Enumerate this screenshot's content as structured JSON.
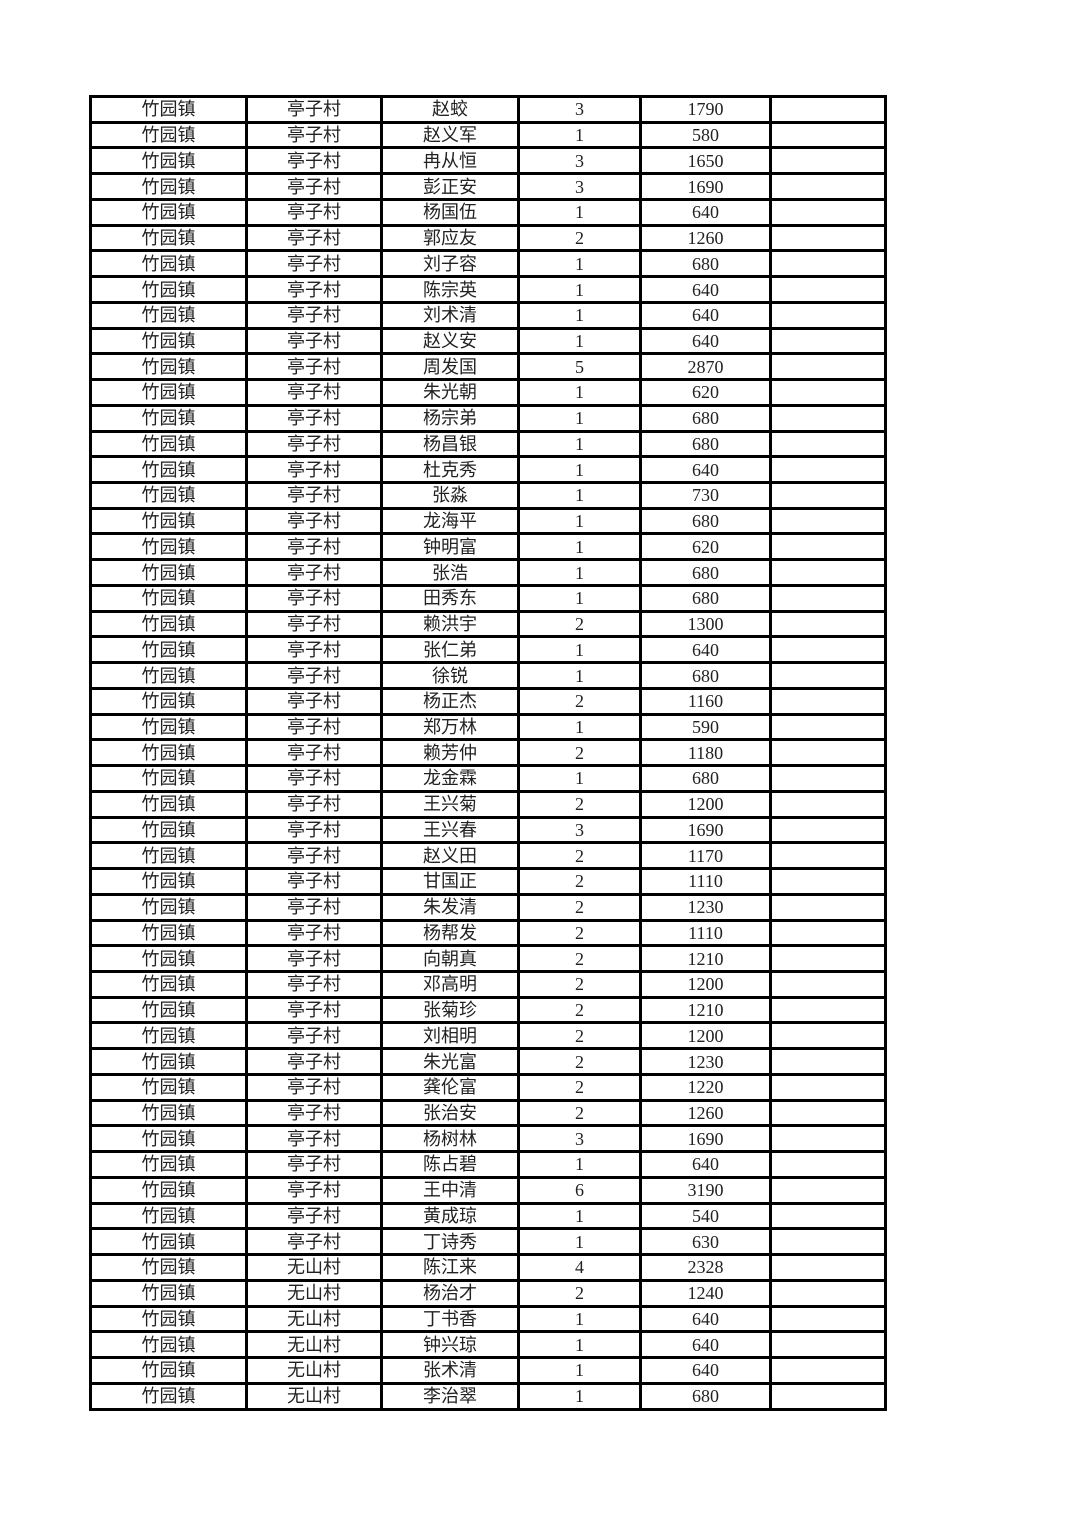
{
  "page": {
    "background_color": "#ffffff",
    "border_color": "#000000",
    "text_color": "#222222"
  },
  "table": {
    "column_keys": [
      "town",
      "village",
      "name",
      "count",
      "amount",
      "blank"
    ],
    "rows": [
      [
        "竹园镇",
        "亭子村",
        "赵蛟",
        "3",
        "1790",
        ""
      ],
      [
        "竹园镇",
        "亭子村",
        "赵义军",
        "1",
        "580",
        ""
      ],
      [
        "竹园镇",
        "亭子村",
        "冉从恒",
        "3",
        "1650",
        ""
      ],
      [
        "竹园镇",
        "亭子村",
        "彭正安",
        "3",
        "1690",
        ""
      ],
      [
        "竹园镇",
        "亭子村",
        "杨国伍",
        "1",
        "640",
        ""
      ],
      [
        "竹园镇",
        "亭子村",
        "郭应友",
        "2",
        "1260",
        ""
      ],
      [
        "竹园镇",
        "亭子村",
        "刘子容",
        "1",
        "680",
        ""
      ],
      [
        "竹园镇",
        "亭子村",
        "陈宗英",
        "1",
        "640",
        ""
      ],
      [
        "竹园镇",
        "亭子村",
        "刘术清",
        "1",
        "640",
        ""
      ],
      [
        "竹园镇",
        "亭子村",
        "赵义安",
        "1",
        "640",
        ""
      ],
      [
        "竹园镇",
        "亭子村",
        "周发国",
        "5",
        "2870",
        ""
      ],
      [
        "竹园镇",
        "亭子村",
        "朱光朝",
        "1",
        "620",
        ""
      ],
      [
        "竹园镇",
        "亭子村",
        "杨宗弟",
        "1",
        "680",
        ""
      ],
      [
        "竹园镇",
        "亭子村",
        "杨昌银",
        "1",
        "680",
        ""
      ],
      [
        "竹园镇",
        "亭子村",
        "杜克秀",
        "1",
        "640",
        ""
      ],
      [
        "竹园镇",
        "亭子村",
        "张淼",
        "1",
        "730",
        ""
      ],
      [
        "竹园镇",
        "亭子村",
        "龙海平",
        "1",
        "680",
        ""
      ],
      [
        "竹园镇",
        "亭子村",
        "钟明富",
        "1",
        "620",
        ""
      ],
      [
        "竹园镇",
        "亭子村",
        "张浩",
        "1",
        "680",
        ""
      ],
      [
        "竹园镇",
        "亭子村",
        "田秀东",
        "1",
        "680",
        ""
      ],
      [
        "竹园镇",
        "亭子村",
        "赖洪宇",
        "2",
        "1300",
        ""
      ],
      [
        "竹园镇",
        "亭子村",
        "张仁弟",
        "1",
        "640",
        ""
      ],
      [
        "竹园镇",
        "亭子村",
        "徐锐",
        "1",
        "680",
        ""
      ],
      [
        "竹园镇",
        "亭子村",
        "杨正杰",
        "2",
        "1160",
        ""
      ],
      [
        "竹园镇",
        "亭子村",
        "郑万林",
        "1",
        "590",
        ""
      ],
      [
        "竹园镇",
        "亭子村",
        "赖芳仲",
        "2",
        "1180",
        ""
      ],
      [
        "竹园镇",
        "亭子村",
        "龙金霖",
        "1",
        "680",
        ""
      ],
      [
        "竹园镇",
        "亭子村",
        "王兴菊",
        "2",
        "1200",
        ""
      ],
      [
        "竹园镇",
        "亭子村",
        "王兴春",
        "3",
        "1690",
        ""
      ],
      [
        "竹园镇",
        "亭子村",
        "赵义田",
        "2",
        "1170",
        ""
      ],
      [
        "竹园镇",
        "亭子村",
        "甘国正",
        "2",
        "1110",
        ""
      ],
      [
        "竹园镇",
        "亭子村",
        "朱发清",
        "2",
        "1230",
        ""
      ],
      [
        "竹园镇",
        "亭子村",
        "杨帮发",
        "2",
        "1110",
        ""
      ],
      [
        "竹园镇",
        "亭子村",
        "向朝真",
        "2",
        "1210",
        ""
      ],
      [
        "竹园镇",
        "亭子村",
        "邓高明",
        "2",
        "1200",
        ""
      ],
      [
        "竹园镇",
        "亭子村",
        "张菊珍",
        "2",
        "1210",
        ""
      ],
      [
        "竹园镇",
        "亭子村",
        "刘相明",
        "2",
        "1200",
        ""
      ],
      [
        "竹园镇",
        "亭子村",
        "朱光富",
        "2",
        "1230",
        ""
      ],
      [
        "竹园镇",
        "亭子村",
        "龚伦富",
        "2",
        "1220",
        ""
      ],
      [
        "竹园镇",
        "亭子村",
        "张治安",
        "2",
        "1260",
        ""
      ],
      [
        "竹园镇",
        "亭子村",
        "杨树林",
        "3",
        "1690",
        ""
      ],
      [
        "竹园镇",
        "亭子村",
        "陈占碧",
        "1",
        "640",
        ""
      ],
      [
        "竹园镇",
        "亭子村",
        "王中清",
        "6",
        "3190",
        ""
      ],
      [
        "竹园镇",
        "亭子村",
        "黄成琼",
        "1",
        "540",
        ""
      ],
      [
        "竹园镇",
        "亭子村",
        "丁诗秀",
        "1",
        "630",
        ""
      ],
      [
        "竹园镇",
        "无山村",
        "陈江来",
        "4",
        "2328",
        ""
      ],
      [
        "竹园镇",
        "无山村",
        "杨治才",
        "2",
        "1240",
        ""
      ],
      [
        "竹园镇",
        "无山村",
        "丁书香",
        "1",
        "640",
        ""
      ],
      [
        "竹园镇",
        "无山村",
        "钟兴琼",
        "1",
        "640",
        ""
      ],
      [
        "竹园镇",
        "无山村",
        "张术清",
        "1",
        "640",
        ""
      ],
      [
        "竹园镇",
        "无山村",
        "李治翠",
        "1",
        "680",
        ""
      ]
    ]
  }
}
